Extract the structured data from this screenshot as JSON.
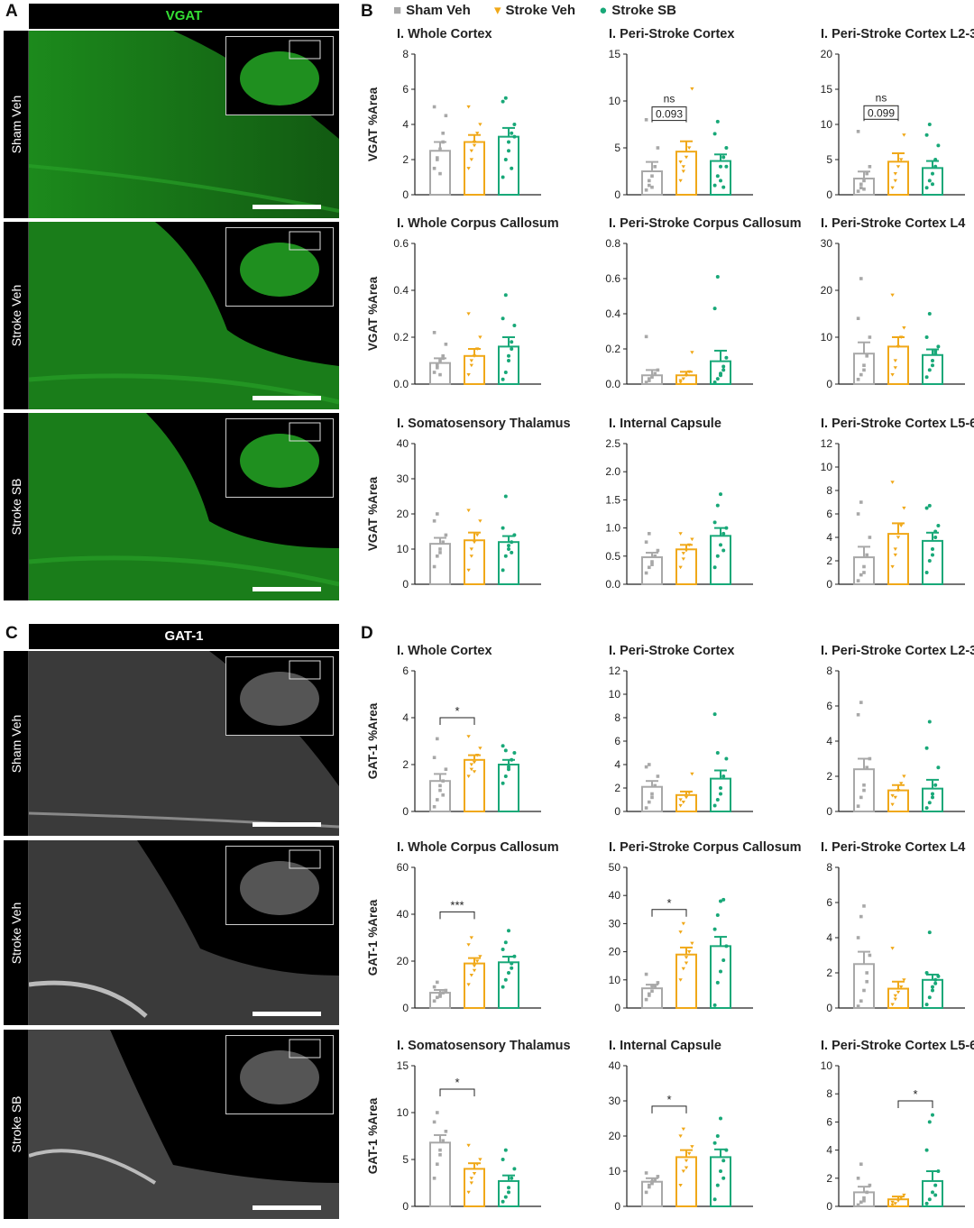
{
  "panels": {
    "A": {
      "letter": "A",
      "header": "VGAT",
      "header_color": "#35e035",
      "rows": [
        "Sham Veh",
        "Stroke Veh",
        "Stroke SB"
      ]
    },
    "B": {
      "letter": "B"
    },
    "C": {
      "letter": "C",
      "header": "GAT-1",
      "header_color": "#ffffff",
      "rows": [
        "Sham Veh",
        "Stroke Veh",
        "Stroke SB"
      ]
    },
    "D": {
      "letter": "D"
    }
  },
  "legend": [
    {
      "label": "Sham Veh",
      "color": "#a8a8a8",
      "marker": "■"
    },
    {
      "label": "Stroke Veh",
      "color": "#f0a818",
      "marker": "▾"
    },
    {
      "label": "Stroke SB",
      "color": "#18a878",
      "marker": "●"
    }
  ],
  "colors": {
    "sham": "#a8a8a8",
    "stroke": "#f0a818",
    "sb": "#18a878",
    "vgat_tissue": "#1f7a1f",
    "gat_tissue": "#6a6a6a"
  },
  "chart_data": [
    {
      "panel": "B",
      "type": "bar",
      "title": "I. Whole Cortex",
      "ylabel": "VGAT %Area",
      "ylim": [
        0,
        8
      ],
      "yticks": [
        "0",
        "2",
        "4",
        "6",
        "8"
      ],
      "categories": [
        "Sham Veh",
        "Stroke Veh",
        "Stroke SB"
      ],
      "values": [
        2.5,
        3.0,
        3.3
      ],
      "sem": [
        0.5,
        0.4,
        0.5
      ],
      "points": [
        [
          1.5,
          2.0,
          2.6,
          3.0,
          4.5,
          5.0,
          2.1,
          1.2,
          3.5
        ],
        [
          1.5,
          2.5,
          3.0,
          3.5,
          4.0,
          5.0,
          2.0,
          2.8
        ],
        [
          1.0,
          2.0,
          3.0,
          3.5,
          4.0,
          5.3,
          5.5,
          2.5,
          1.5,
          3.3
        ]
      ],
      "annotations": []
    },
    {
      "panel": "B",
      "type": "bar",
      "title": "I. Peri-Stroke Cortex",
      "ylabel": "",
      "ylim": [
        0,
        15
      ],
      "yticks": [
        "0",
        "5",
        "10",
        "15"
      ],
      "categories": [
        "Sham Veh",
        "Stroke Veh",
        "Stroke SB"
      ],
      "values": [
        2.5,
        4.6,
        3.6
      ],
      "sem": [
        1.0,
        1.1,
        0.7
      ],
      "points": [
        [
          0.5,
          1.0,
          2.0,
          3.0,
          5.0,
          8.0,
          1.5,
          0.8
        ],
        [
          1.5,
          3.0,
          4.0,
          5.0,
          11.3,
          3.5,
          2.5
        ],
        [
          1.0,
          2.0,
          3.0,
          4.0,
          5.0,
          6.5,
          7.8,
          1.5,
          0.8,
          3.0
        ]
      ],
      "annotations": [
        {
          "from": 0,
          "to": 1,
          "y": 8.5,
          "text": "ns"
        },
        {
          "from": 0,
          "to": 1,
          "y": 8.5,
          "text": "0.093",
          "boxed": true
        }
      ]
    },
    {
      "panel": "B",
      "type": "bar",
      "title": "I. Peri-Stroke Cortex L2-3",
      "ylabel": "",
      "ylim": [
        0,
        20
      ],
      "yticks": [
        "0",
        "5",
        "10",
        "15",
        "20"
      ],
      "categories": [
        "Sham Veh",
        "Stroke Veh",
        "Stroke SB"
      ],
      "values": [
        2.3,
        4.7,
        3.8
      ],
      "sem": [
        1.0,
        1.2,
        1.0
      ],
      "points": [
        [
          0.5,
          1.0,
          2.0,
          3.0,
          4.0,
          9.0,
          1.5,
          0.8
        ],
        [
          1.0,
          2.0,
          4.0,
          5.0,
          8.5,
          12.5,
          3.0
        ],
        [
          1.0,
          2.0,
          3.0,
          5.0,
          7.0,
          8.5,
          10.0,
          1.5,
          4.0
        ]
      ],
      "annotations": [
        {
          "from": 0,
          "to": 1,
          "y": 11.5,
          "text": "ns"
        },
        {
          "from": 0,
          "to": 1,
          "y": 11.5,
          "text": "0.099",
          "boxed": true
        }
      ]
    },
    {
      "panel": "B",
      "type": "bar",
      "title": "I. Whole Corpus Callosum",
      "ylabel": "VGAT %Area",
      "ylim": [
        0,
        0.6
      ],
      "yticks": [
        "0.0",
        "0.2",
        "0.4",
        "0.6"
      ],
      "categories": [
        "Sham Veh",
        "Stroke Veh",
        "Stroke SB"
      ],
      "values": [
        0.09,
        0.12,
        0.16
      ],
      "sem": [
        0.02,
        0.03,
        0.04
      ],
      "points": [
        [
          0.05,
          0.08,
          0.1,
          0.12,
          0.17,
          0.22,
          0.07,
          0.04,
          0.11
        ],
        [
          0.04,
          0.08,
          0.12,
          0.15,
          0.2,
          0.3,
          0.1
        ],
        [
          0.02,
          0.05,
          0.1,
          0.15,
          0.25,
          0.28,
          0.38,
          0.12,
          0.18
        ]
      ],
      "annotations": []
    },
    {
      "panel": "B",
      "type": "bar",
      "title": "I. Peri-Stroke Corpus Callosum",
      "ylabel": "",
      "ylim": [
        0,
        0.8
      ],
      "yticks": [
        "0.0",
        "0.2",
        "0.4",
        "0.6",
        "0.8"
      ],
      "categories": [
        "Sham Veh",
        "Stroke Veh",
        "Stroke SB"
      ],
      "values": [
        0.05,
        0.05,
        0.13
      ],
      "sem": [
        0.03,
        0.02,
        0.06
      ],
      "points": [
        [
          0.01,
          0.02,
          0.04,
          0.06,
          0.08,
          0.27,
          0.03
        ],
        [
          0.01,
          0.03,
          0.05,
          0.07,
          0.18,
          0.02
        ],
        [
          0.01,
          0.03,
          0.06,
          0.1,
          0.15,
          0.43,
          0.61,
          0.05,
          0.08
        ]
      ],
      "annotations": []
    },
    {
      "panel": "B",
      "type": "bar",
      "title": "I. Peri-Stroke Cortex L4",
      "ylabel": "",
      "ylim": [
        0,
        30
      ],
      "yticks": [
        "0",
        "10",
        "20",
        "30"
      ],
      "categories": [
        "Sham Veh",
        "Stroke Veh",
        "Stroke SB"
      ],
      "values": [
        6.5,
        8.0,
        6.2
      ],
      "sem": [
        2.4,
        2.0,
        1.2
      ],
      "points": [
        [
          1.0,
          2.0,
          4.0,
          6.0,
          10.0,
          14.0,
          22.5,
          3.0
        ],
        [
          2.0,
          5.0,
          8.0,
          10.0,
          12.0,
          19.0,
          3.5
        ],
        [
          1.5,
          3.0,
          5.0,
          7.0,
          8.0,
          10.0,
          15.0,
          4.0,
          6.5
        ]
      ],
      "annotations": []
    },
    {
      "panel": "B",
      "type": "bar",
      "title": "I. Somatosensory Thalamus",
      "ylabel": "VGAT %Area",
      "ylim": [
        0,
        40
      ],
      "yticks": [
        "0",
        "10",
        "20",
        "30",
        "40"
      ],
      "categories": [
        "Sham Veh",
        "Stroke Veh",
        "Stroke SB"
      ],
      "values": [
        11.5,
        12.5,
        12.0
      ],
      "sem": [
        1.7,
        2.2,
        1.7
      ],
      "points": [
        [
          5.0,
          8.0,
          10.0,
          12.0,
          14.0,
          18.0,
          20.0,
          9.0
        ],
        [
          4.0,
          8.0,
          12.0,
          14.0,
          18.0,
          21.0,
          10.0
        ],
        [
          4.0,
          8.0,
          10.0,
          12.0,
          14.0,
          16.0,
          25.0,
          11.0,
          9.0
        ]
      ],
      "annotations": []
    },
    {
      "panel": "B",
      "type": "bar",
      "title": "I. Internal Capsule",
      "ylabel": "",
      "ylim": [
        0,
        2.5
      ],
      "yticks": [
        "0.0",
        "0.5",
        "1.0",
        "1.5",
        "2.0",
        "2.5"
      ],
      "categories": [
        "Sham Veh",
        "Stroke Veh",
        "Stroke SB"
      ],
      "values": [
        0.48,
        0.62,
        0.86
      ],
      "sem": [
        0.08,
        0.08,
        0.14
      ],
      "points": [
        [
          0.2,
          0.3,
          0.4,
          0.5,
          0.6,
          0.75,
          0.9,
          0.35
        ],
        [
          0.3,
          0.45,
          0.6,
          0.7,
          0.8,
          0.9,
          0.55
        ],
        [
          0.3,
          0.5,
          0.7,
          0.9,
          1.0,
          1.1,
          1.4,
          1.6,
          0.6
        ]
      ],
      "annotations": []
    },
    {
      "panel": "B",
      "type": "bar",
      "title": "I. Peri-Stroke Cortex L5-6",
      "ylabel": "",
      "ylim": [
        0,
        12
      ],
      "yticks": [
        "0",
        "2",
        "4",
        "6",
        "8",
        "10",
        "12"
      ],
      "categories": [
        "Sham Veh",
        "Stroke Veh",
        "Stroke SB"
      ],
      "values": [
        2.3,
        4.3,
        3.7
      ],
      "sem": [
        0.9,
        0.9,
        0.7
      ],
      "points": [
        [
          0.3,
          0.8,
          1.5,
          2.5,
          4.0,
          6.0,
          7.0,
          1.0
        ],
        [
          1.5,
          2.5,
          4.0,
          5.0,
          6.5,
          8.7,
          3.0
        ],
        [
          1.0,
          2.0,
          3.0,
          4.0,
          5.0,
          6.5,
          6.7,
          2.5,
          4.5
        ]
      ],
      "annotations": []
    },
    {
      "panel": "D",
      "type": "bar",
      "title": "I. Whole Cortex",
      "ylabel": "GAT-1 %Area",
      "ylim": [
        0,
        6
      ],
      "yticks": [
        "0",
        "2",
        "4",
        "6"
      ],
      "categories": [
        "Sham Veh",
        "Stroke Veh",
        "Stroke SB"
      ],
      "values": [
        1.3,
        2.2,
        2.0
      ],
      "sem": [
        0.3,
        0.2,
        0.2
      ],
      "points": [
        [
          0.2,
          0.5,
          0.9,
          1.3,
          1.8,
          2.3,
          3.1,
          1.1,
          0.7
        ],
        [
          1.5,
          1.8,
          2.1,
          2.4,
          2.7,
          3.2,
          2.0,
          1.7
        ],
        [
          1.2,
          1.5,
          1.9,
          2.2,
          2.5,
          2.8,
          2.6,
          1.8
        ]
      ],
      "annotations": [
        {
          "from": 0,
          "to": 1,
          "y": 4.0,
          "text": "*"
        }
      ]
    },
    {
      "panel": "D",
      "type": "bar",
      "title": "I. Peri-Stroke Cortex",
      "ylabel": "",
      "ylim": [
        0,
        12
      ],
      "yticks": [
        "0",
        "2",
        "4",
        "6",
        "8",
        "10",
        "12"
      ],
      "categories": [
        "Sham Veh",
        "Stroke Veh",
        "Stroke SB"
      ],
      "values": [
        2.1,
        1.4,
        2.8
      ],
      "sem": [
        0.5,
        0.3,
        0.7
      ],
      "points": [
        [
          0.3,
          0.8,
          1.5,
          2.2,
          3.0,
          3.8,
          4.0,
          1.2
        ],
        [
          0.5,
          0.8,
          1.2,
          1.6,
          3.2,
          1.0
        ],
        [
          0.5,
          1.0,
          2.0,
          3.0,
          4.5,
          8.3,
          5.0,
          1.5
        ]
      ],
      "annotations": []
    },
    {
      "panel": "D",
      "type": "bar",
      "title": "I. Peri-Stroke Cortex L2-3",
      "ylabel": "",
      "ylim": [
        0,
        8
      ],
      "yticks": [
        "0",
        "2",
        "4",
        "6",
        "8"
      ],
      "categories": [
        "Sham Veh",
        "Stroke Veh",
        "Stroke SB"
      ],
      "values": [
        2.4,
        1.2,
        1.3
      ],
      "sem": [
        0.6,
        0.3,
        0.5
      ],
      "points": [
        [
          0.3,
          0.8,
          1.5,
          2.5,
          3.0,
          5.5,
          6.2,
          1.2
        ],
        [
          0.4,
          0.8,
          1.2,
          1.6,
          2.0,
          0.9
        ],
        [
          0.2,
          0.5,
          1.0,
          1.5,
          2.5,
          3.6,
          5.1,
          0.8
        ]
      ],
      "annotations": []
    },
    {
      "panel": "D",
      "type": "bar",
      "title": "I. Whole Corpus Callosum",
      "ylabel": "GAT-1 %Area",
      "ylim": [
        0,
        60
      ],
      "yticks": [
        "0",
        "20",
        "40",
        "60"
      ],
      "categories": [
        "Sham Veh",
        "Stroke Veh",
        "Stroke SB"
      ],
      "values": [
        6.5,
        19.0,
        19.5
      ],
      "sem": [
        1.2,
        2.3,
        2.4
      ],
      "points": [
        [
          3.0,
          4.5,
          5.5,
          6.5,
          7.5,
          9.0,
          11.0,
          5.0
        ],
        [
          10.0,
          14.0,
          18.0,
          20.0,
          22.0,
          27.0,
          30.0,
          16.0
        ],
        [
          9.0,
          12.0,
          15.0,
          19.0,
          22.0,
          25.0,
          28.0,
          33.0,
          17.0
        ]
      ],
      "annotations": [
        {
          "from": 0,
          "to": 1,
          "y": 41.0,
          "text": "***"
        }
      ]
    },
    {
      "panel": "D",
      "type": "bar",
      "title": "I. Peri-Stroke Corpus Callosum",
      "ylabel": "",
      "ylim": [
        0,
        50
      ],
      "yticks": [
        "0",
        "10",
        "20",
        "30",
        "40",
        "50"
      ],
      "categories": [
        "Sham Veh",
        "Stroke Veh",
        "Stroke SB"
      ],
      "values": [
        7.0,
        19.0,
        22.0
      ],
      "sem": [
        1.3,
        2.5,
        3.3
      ],
      "points": [
        [
          3.0,
          4.5,
          6.0,
          7.5,
          9.0,
          12.0,
          5.0,
          8.0
        ],
        [
          10.0,
          14.0,
          18.0,
          20.0,
          23.0,
          27.0,
          30.0,
          16.0
        ],
        [
          1.0,
          9.0,
          13.0,
          17.0,
          22.0,
          28.0,
          33.0,
          38.0,
          38.5
        ]
      ],
      "annotations": [
        {
          "from": 0,
          "to": 1,
          "y": 35.0,
          "text": "*"
        }
      ]
    },
    {
      "panel": "D",
      "type": "bar",
      "title": "I. Peri-Stroke Cortex L4",
      "ylabel": "",
      "ylim": [
        0,
        8
      ],
      "yticks": [
        "0",
        "2",
        "4",
        "6",
        "8"
      ],
      "categories": [
        "Sham Veh",
        "Stroke Veh",
        "Stroke SB"
      ],
      "values": [
        2.5,
        1.1,
        1.6
      ],
      "sem": [
        0.7,
        0.4,
        0.3
      ],
      "points": [
        [
          0.1,
          0.4,
          1.0,
          2.0,
          3.0,
          4.0,
          5.2,
          5.8,
          1.5
        ],
        [
          0.2,
          0.5,
          0.9,
          1.2,
          1.6,
          3.4,
          0.7
        ],
        [
          0.2,
          0.6,
          1.0,
          1.4,
          1.8,
          2.0,
          4.3,
          1.2,
          1.6
        ]
      ],
      "annotations": []
    },
    {
      "panel": "D",
      "type": "bar",
      "title": "I. Somatosensory Thalamus",
      "ylabel": "GAT-1 %Area",
      "ylim": [
        0,
        15
      ],
      "yticks": [
        "0",
        "5",
        "10",
        "15"
      ],
      "categories": [
        "Sham Veh",
        "Stroke Veh",
        "Stroke SB"
      ],
      "values": [
        6.8,
        4.0,
        2.7
      ],
      "sem": [
        0.8,
        0.6,
        0.6
      ],
      "points": [
        [
          3.0,
          4.5,
          6.0,
          7.0,
          8.0,
          9.0,
          10.0,
          5.5
        ],
        [
          1.5,
          2.5,
          3.5,
          4.5,
          5.0,
          6.5,
          3.0
        ],
        [
          0.5,
          1.0,
          2.0,
          3.0,
          4.0,
          5.0,
          6.0,
          1.5
        ]
      ],
      "annotations": [
        {
          "from": 0,
          "to": 1,
          "y": 12.5,
          "text": "*"
        }
      ]
    },
    {
      "panel": "D",
      "type": "bar",
      "title": "I. Internal Capsule",
      "ylabel": "",
      "ylim": [
        0,
        40
      ],
      "yticks": [
        "0",
        "10",
        "20",
        "30",
        "40"
      ],
      "categories": [
        "Sham Veh",
        "Stroke Veh",
        "Stroke SB"
      ],
      "values": [
        7.0,
        14.0,
        14.0
      ],
      "sem": [
        1.0,
        2.0,
        2.2
      ],
      "points": [
        [
          4.0,
          5.5,
          6.5,
          7.5,
          8.5,
          9.5,
          6.0,
          7.0
        ],
        [
          6.0,
          10.0,
          13.0,
          15.0,
          17.0,
          20.0,
          22.0,
          11.0
        ],
        [
          2.0,
          6.0,
          10.0,
          13.0,
          16.0,
          18.0,
          20.0,
          25.0,
          8.0
        ]
      ],
      "annotations": [
        {
          "from": 0,
          "to": 1,
          "y": 28.5,
          "text": "*"
        }
      ]
    },
    {
      "panel": "D",
      "type": "bar",
      "title": "I. Peri-Stroke Cortex L5-6",
      "ylabel": "",
      "ylim": [
        0,
        10
      ],
      "yticks": [
        "0",
        "2",
        "4",
        "6",
        "8",
        "10"
      ],
      "categories": [
        "Sham Veh",
        "Stroke Veh",
        "Stroke SB"
      ],
      "values": [
        1.0,
        0.5,
        1.8
      ],
      "sem": [
        0.4,
        0.2,
        0.7
      ],
      "points": [
        [
          0.1,
          0.3,
          0.6,
          1.0,
          1.5,
          2.0,
          3.0,
          0.4
        ],
        [
          0.1,
          0.2,
          0.4,
          0.6,
          0.8,
          0.3
        ],
        [
          0.2,
          0.5,
          1.0,
          1.5,
          2.5,
          4.0,
          6.0,
          6.5,
          0.8
        ]
      ],
      "annotations": [
        {
          "from": 1,
          "to": 2,
          "y": 7.5,
          "text": "*"
        }
      ]
    }
  ]
}
